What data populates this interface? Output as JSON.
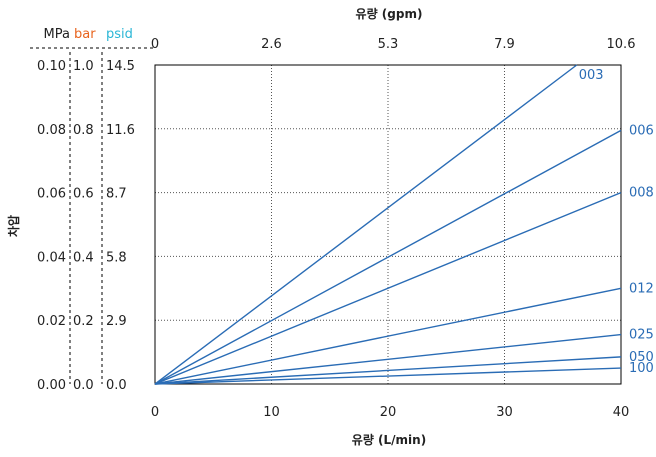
{
  "chart_data": {
    "type": "line",
    "xlabel": "유량 (L/min)",
    "x2label": "유량 (gpm)",
    "ylabel": "차압",
    "xlim": [
      0,
      40
    ],
    "ylim": [
      0,
      0.1
    ],
    "grid": true,
    "x_ticks": [
      "0",
      "10",
      "20",
      "30",
      "40"
    ],
    "x2_ticks": [
      "0",
      "2.6",
      "5.3",
      "7.9",
      "10.6"
    ],
    "y_axes": [
      {
        "unit": "MPa",
        "ticks": [
          "0.00",
          "0.02",
          "0.04",
          "0.06",
          "0.08",
          "0.10"
        ],
        "color": "#222222"
      },
      {
        "unit": "bar",
        "ticks": [
          "0.0",
          "0.2",
          "0.4",
          "0.6",
          "0.8",
          "1.0"
        ],
        "color": "#e8641e"
      },
      {
        "unit": "psid",
        "ticks": [
          "0.0",
          "2.9",
          "5.8",
          "8.7",
          "11.6",
          "14.5"
        ],
        "color": "#2bb6d6"
      }
    ],
    "line_color": "#2a6cb5",
    "series": [
      {
        "name": "003",
        "x": [
          0,
          36.2
        ],
        "y": [
          0,
          0.1
        ]
      },
      {
        "name": "006",
        "x": [
          0,
          40
        ],
        "y": [
          0,
          0.0795
        ]
      },
      {
        "name": "008",
        "x": [
          0,
          40
        ],
        "y": [
          0,
          0.06
        ]
      },
      {
        "name": "012",
        "x": [
          0,
          40
        ],
        "y": [
          0,
          0.03
        ]
      },
      {
        "name": "025",
        "x": [
          0,
          40
        ],
        "y": [
          0,
          0.0155
        ]
      },
      {
        "name": "050",
        "x": [
          0,
          40
        ],
        "y": [
          0,
          0.0085
        ]
      },
      {
        "name": "100",
        "x": [
          0,
          40
        ],
        "y": [
          0,
          0.005
        ]
      }
    ]
  }
}
